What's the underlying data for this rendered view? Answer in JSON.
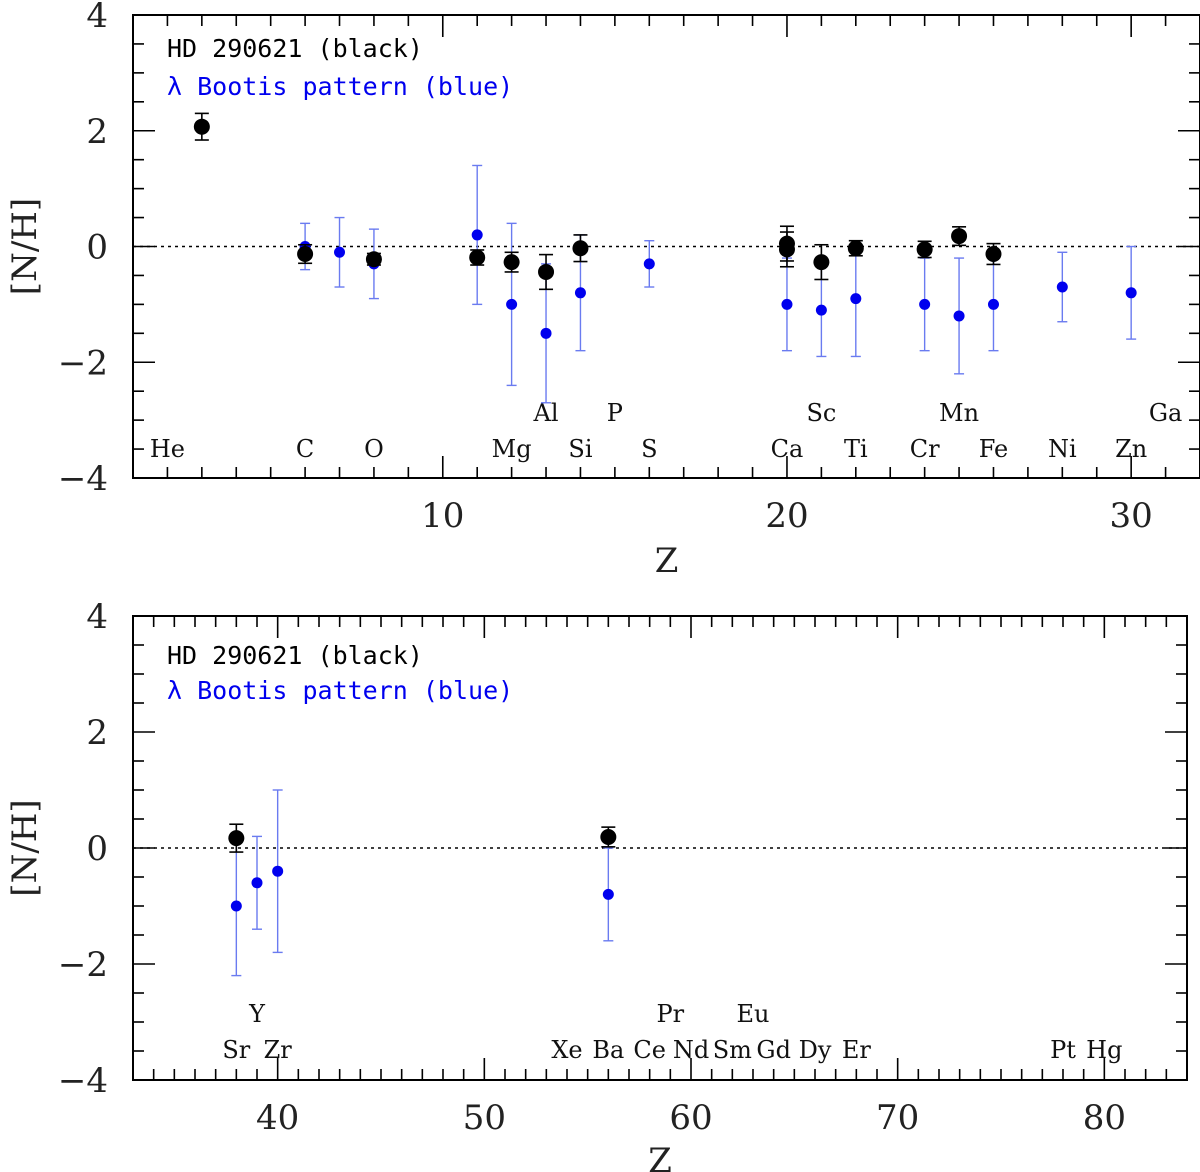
{
  "colors": {
    "star": "#000000",
    "lambda_boo": "#0000ee",
    "lambda_boo_err": "#6a7bf0",
    "frame": "#000000"
  },
  "chart_data": [
    {
      "type": "scatter",
      "panel": "top",
      "xlabel": "Z",
      "ylabel": "[N/H]",
      "xlim": [
        1,
        32
      ],
      "ylim": [
        -4,
        4
      ],
      "xticks": [
        10,
        20,
        30
      ],
      "yticks": [
        -4,
        -2,
        0,
        2,
        4
      ],
      "legend": {
        "star_label": "HD 290621 (black)",
        "pattern_label": "λ Bootis pattern (blue)",
        "placement": "top-left"
      },
      "star_series": [
        {
          "z": 3,
          "y": 2.07,
          "err": 0.23
        },
        {
          "z": 6,
          "y": -0.13,
          "err": 0.16
        },
        {
          "z": 8,
          "y": -0.22,
          "err": 0.1
        },
        {
          "z": 11,
          "y": -0.19,
          "err": 0.13
        },
        {
          "z": 12,
          "y": -0.27,
          "err": 0.17
        },
        {
          "z": 13,
          "y": -0.44,
          "err": 0.3
        },
        {
          "z": 14,
          "y": -0.03,
          "err": 0.23
        },
        {
          "z": 20,
          "y": 0.05,
          "err": 0.3
        },
        {
          "z": 20,
          "y": -0.05,
          "err": 0.3
        },
        {
          "z": 21,
          "y": -0.27,
          "err": 0.3
        },
        {
          "z": 22,
          "y": -0.03,
          "err": 0.13
        },
        {
          "z": 24,
          "y": -0.05,
          "err": 0.14
        },
        {
          "z": 25,
          "y": 0.18,
          "err": 0.16
        },
        {
          "z": 26,
          "y": -0.13,
          "err": 0.18
        }
      ],
      "pattern_series": [
        {
          "z": 6,
          "y": 0.0,
          "lo": -0.4,
          "hi": 0.4
        },
        {
          "z": 7,
          "y": -0.1,
          "lo": -0.7,
          "hi": 0.5
        },
        {
          "z": 8,
          "y": -0.3,
          "lo": -0.9,
          "hi": 0.3
        },
        {
          "z": 11,
          "y": 0.2,
          "lo": -1.0,
          "hi": 1.4
        },
        {
          "z": 12,
          "y": -1.0,
          "lo": -2.4,
          "hi": 0.4
        },
        {
          "z": 13,
          "y": -1.5,
          "lo": -2.7,
          "hi": -0.3
        },
        {
          "z": 14,
          "y": -0.8,
          "lo": -1.8,
          "hi": 0.2
        },
        {
          "z": 16,
          "y": -0.3,
          "lo": -0.7,
          "hi": 0.1
        },
        {
          "z": 20,
          "y": -1.0,
          "lo": -1.8,
          "hi": -0.2
        },
        {
          "z": 21,
          "y": -1.1,
          "lo": -1.9,
          "hi": -0.3
        },
        {
          "z": 22,
          "y": -0.9,
          "lo": -1.9,
          "hi": 0.1
        },
        {
          "z": 24,
          "y": -1.0,
          "lo": -1.8,
          "hi": -0.2
        },
        {
          "z": 25,
          "y": -1.2,
          "lo": -2.2,
          "hi": -0.2
        },
        {
          "z": 26,
          "y": -1.0,
          "lo": -1.8,
          "hi": -0.2
        },
        {
          "z": 28,
          "y": -0.7,
          "lo": -1.3,
          "hi": -0.1
        },
        {
          "z": 30,
          "y": -0.8,
          "lo": -1.6,
          "hi": 0.0
        }
      ],
      "element_labels": [
        {
          "z": 2,
          "name": "He",
          "row": 0
        },
        {
          "z": 6,
          "name": "C",
          "row": 0
        },
        {
          "z": 8,
          "name": "O",
          "row": 0
        },
        {
          "z": 12,
          "name": "Mg",
          "row": 0
        },
        {
          "z": 13,
          "name": "Al",
          "row": 1
        },
        {
          "z": 14,
          "name": "Si",
          "row": 0
        },
        {
          "z": 15,
          "name": "P",
          "row": 1
        },
        {
          "z": 16,
          "name": "S",
          "row": 0
        },
        {
          "z": 20,
          "name": "Ca",
          "row": 0
        },
        {
          "z": 21,
          "name": "Sc",
          "row": 1
        },
        {
          "z": 22,
          "name": "Ti",
          "row": 0
        },
        {
          "z": 24,
          "name": "Cr",
          "row": 0
        },
        {
          "z": 25,
          "name": "Mn",
          "row": 1
        },
        {
          "z": 26,
          "name": "Fe",
          "row": 0
        },
        {
          "z": 28,
          "name": "Ni",
          "row": 0
        },
        {
          "z": 30,
          "name": "Zn",
          "row": 0
        },
        {
          "z": 31,
          "name": "Ga",
          "row": 1
        }
      ]
    },
    {
      "type": "scatter",
      "panel": "bottom",
      "xlabel": "Z",
      "ylabel": "[N/H]",
      "xlim": [
        33,
        84
      ],
      "ylim": [
        -4,
        4
      ],
      "xticks": [
        40,
        50,
        60,
        70,
        80
      ],
      "yticks": [
        -4,
        -2,
        0,
        2,
        4
      ],
      "legend": {
        "star_label": "HD 290621 (black)",
        "pattern_label": "λ Bootis pattern (blue)",
        "placement": "top-left"
      },
      "star_series": [
        {
          "z": 38,
          "y": 0.17,
          "err": 0.24
        },
        {
          "z": 56,
          "y": 0.19,
          "err": 0.17
        }
      ],
      "pattern_series": [
        {
          "z": 38,
          "y": -1.0,
          "lo": -2.2,
          "hi": 0.2
        },
        {
          "z": 39,
          "y": -0.6,
          "lo": -1.4,
          "hi": 0.2
        },
        {
          "z": 40,
          "y": -0.4,
          "lo": -1.8,
          "hi": 1.0
        },
        {
          "z": 56,
          "y": -0.8,
          "lo": -1.6,
          "hi": 0.0
        }
      ],
      "element_labels": [
        {
          "z": 38,
          "name": "Sr",
          "row": 0
        },
        {
          "z": 39,
          "name": "Y",
          "row": 1
        },
        {
          "z": 40,
          "name": "Zr",
          "row": 0
        },
        {
          "z": 54,
          "name": "Xe",
          "row": 0
        },
        {
          "z": 56,
          "name": "Ba",
          "row": 0
        },
        {
          "z": 58,
          "name": "Ce",
          "row": 0
        },
        {
          "z": 59,
          "name": "Pr",
          "row": 1
        },
        {
          "z": 60,
          "name": "Nd",
          "row": 0
        },
        {
          "z": 62,
          "name": "Sm",
          "row": 0
        },
        {
          "z": 63,
          "name": "Eu",
          "row": 1
        },
        {
          "z": 64,
          "name": "Gd",
          "row": 0
        },
        {
          "z": 66,
          "name": "Dy",
          "row": 0
        },
        {
          "z": 68,
          "name": "Er",
          "row": 0
        },
        {
          "z": 78,
          "name": "Pt",
          "row": 0
        },
        {
          "z": 80,
          "name": "Hg",
          "row": 0
        }
      ]
    }
  ]
}
